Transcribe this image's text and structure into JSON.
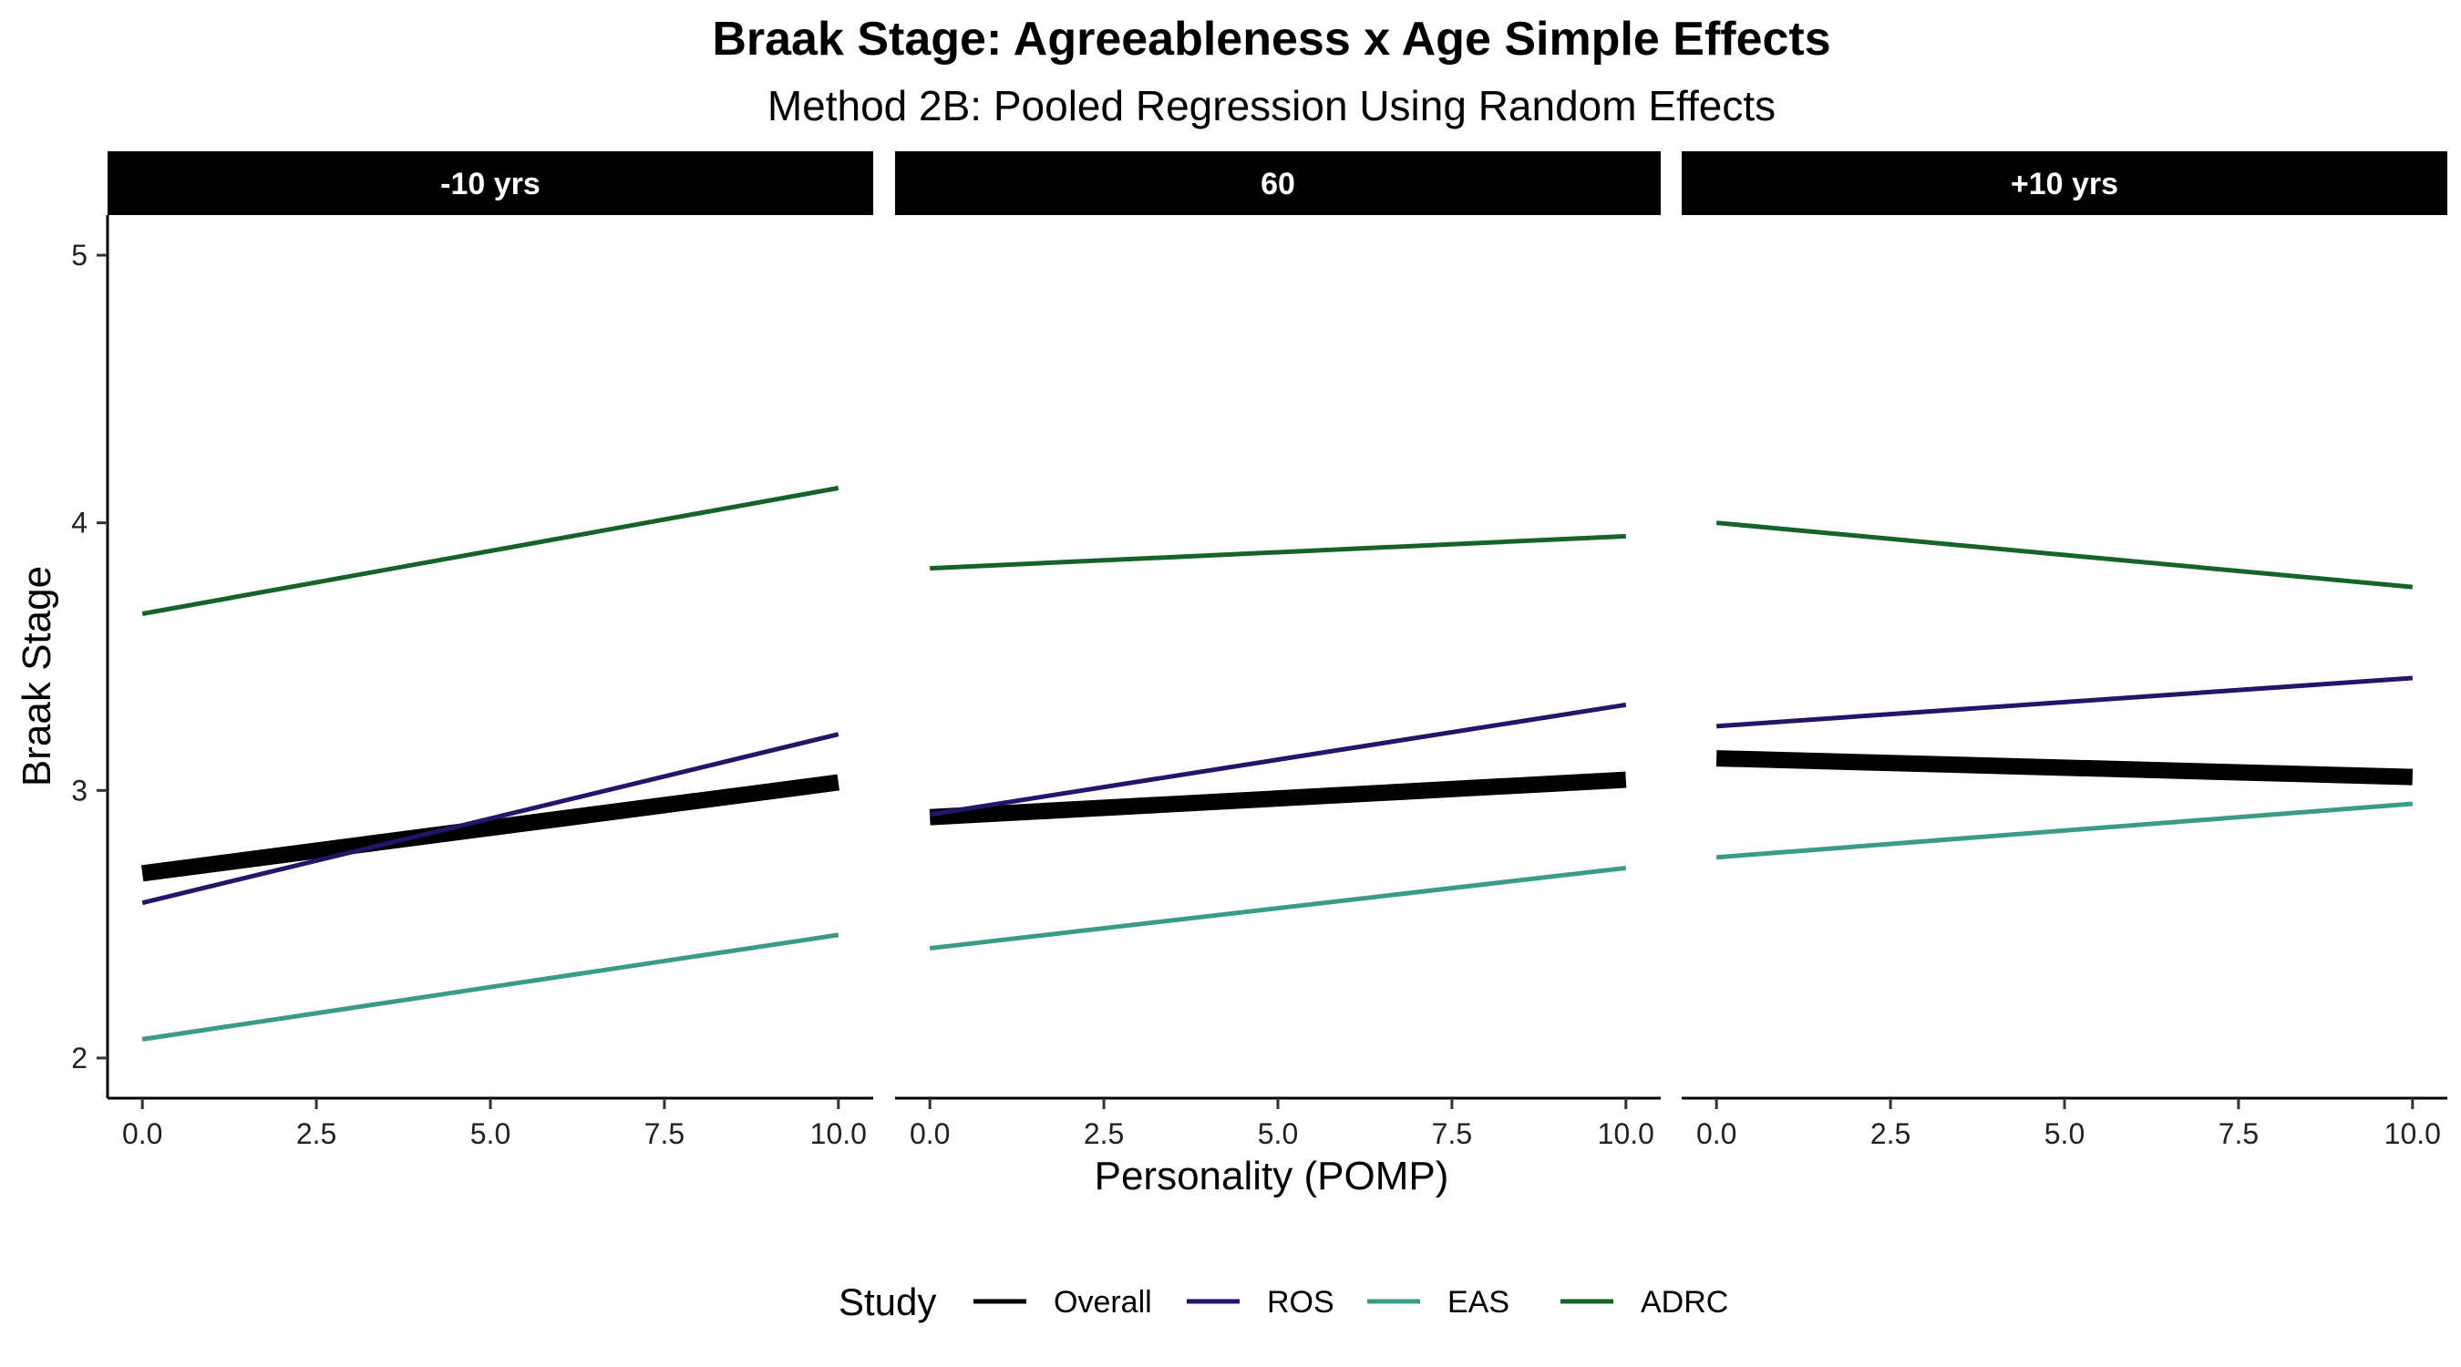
{
  "chart_data": {
    "type": "line",
    "title": "Braak Stage: Agreeableness x Age Simple Effects",
    "subtitle": "Method 2B: Pooled Regression Using Random Effects",
    "xlabel": "Personality (POMP)",
    "ylabel": "Braak Stage",
    "xlim": [
      -0.5,
      10.5
    ],
    "ylim": [
      1.85,
      5.15
    ],
    "x_ticks": [
      "0.0",
      "2.5",
      "5.0",
      "7.5",
      "10.0"
    ],
    "y_ticks": [
      "2",
      "3",
      "4",
      "5"
    ],
    "grid": false,
    "legend": {
      "title": "Study",
      "position": "bottom",
      "entries": [
        "Overall",
        "ROS",
        "EAS",
        "ADRC"
      ]
    },
    "series_colors": {
      "Overall": "#000000",
      "ROS": "#24156B",
      "EAS": "#3A9C86",
      "ADRC": "#16632A"
    },
    "panels": [
      {
        "label": "-10 yrs",
        "series": [
          {
            "name": "Overall",
            "x": [
              0,
              10
            ],
            "values": [
              2.69,
              3.03
            ]
          },
          {
            "name": "ROS",
            "x": [
              0,
              10
            ],
            "values": [
              2.58,
              3.21
            ]
          },
          {
            "name": "EAS",
            "x": [
              0,
              10
            ],
            "values": [
              2.07,
              2.46
            ]
          },
          {
            "name": "ADRC",
            "x": [
              0,
              10
            ],
            "values": [
              3.66,
              4.13
            ]
          }
        ]
      },
      {
        "label": "60",
        "series": [
          {
            "name": "Overall",
            "x": [
              0,
              10
            ],
            "values": [
              2.9,
              3.04
            ]
          },
          {
            "name": "ROS",
            "x": [
              0,
              10
            ],
            "values": [
              2.91,
              3.32
            ]
          },
          {
            "name": "EAS",
            "x": [
              0,
              10
            ],
            "values": [
              2.41,
              2.71
            ]
          },
          {
            "name": "ADRC",
            "x": [
              0,
              10
            ],
            "values": [
              3.83,
              3.95
            ]
          }
        ]
      },
      {
        "label": "+10 yrs",
        "series": [
          {
            "name": "Overall",
            "x": [
              0,
              10
            ],
            "values": [
              3.12,
              3.05
            ]
          },
          {
            "name": "ROS",
            "x": [
              0,
              10
            ],
            "values": [
              3.24,
              3.42
            ]
          },
          {
            "name": "EAS",
            "x": [
              0,
              10
            ],
            "values": [
              2.75,
              2.95
            ]
          },
          {
            "name": "ADRC",
            "x": [
              0,
              10
            ],
            "values": [
              4.0,
              3.76
            ]
          }
        ]
      }
    ]
  }
}
